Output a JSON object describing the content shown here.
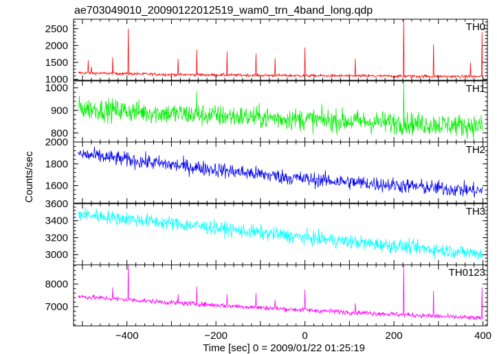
{
  "chart_data": {
    "type": "line",
    "title": "ae703049010_20090122012519_wam0_trn_4band_long.qdp",
    "xlabel": "Time [sec] 0 = 2009/01/22 01:25:19",
    "ylabel": "Counts/sec",
    "xlim": [
      -520,
      410
    ],
    "x_ticks": [
      -400,
      -200,
      0,
      200,
      400
    ],
    "x_tick_labels": [
      "−400",
      "−200",
      "0",
      "200",
      "400"
    ],
    "x_step": 1,
    "panels": [
      {
        "name": "TH0",
        "color": "#ff0000",
        "ylim": [
          970,
          2780
        ],
        "y_ticks": [
          1000,
          1500,
          2000,
          2500
        ],
        "trend": [
          [
            -510,
            1190
          ],
          [
            -300,
            1140
          ],
          [
            0,
            1105
          ],
          [
            400,
            1080
          ]
        ],
        "noise": 22,
        "spikes": [
          {
            "x": -487,
            "y": 1560
          },
          {
            "x": -480,
            "y": 1370
          },
          {
            "x": -432,
            "y": 1650
          },
          {
            "x": -397,
            "y": 2500
          },
          {
            "x": -285,
            "y": 1600
          },
          {
            "x": -243,
            "y": 1880
          },
          {
            "x": -175,
            "y": 1830
          },
          {
            "x": -110,
            "y": 1760
          },
          {
            "x": -67,
            "y": 1620
          },
          {
            "x": 0,
            "y": 1940
          },
          {
            "x": 113,
            "y": 1610
          },
          {
            "x": 222,
            "y": 2780
          },
          {
            "x": 289,
            "y": 2030
          },
          {
            "x": 372,
            "y": 1500
          },
          {
            "x": 398,
            "y": 2390
          }
        ]
      },
      {
        "name": "TH1",
        "color": "#00ee00",
        "ylim": [
          760,
          1030
        ],
        "y_ticks": [
          800,
          900,
          1000
        ],
        "trend": [
          [
            -510,
            910
          ],
          [
            -300,
            885
          ],
          [
            0,
            860
          ],
          [
            400,
            830
          ]
        ],
        "noise": 25,
        "spikes": [
          {
            "x": 222,
            "y": 1030
          },
          {
            "x": -243,
            "y": 985
          }
        ]
      },
      {
        "name": "TH2",
        "color": "#0000ee",
        "ylim": [
          1440,
          2000
        ],
        "y_ticks": [
          1600,
          1800,
          2000
        ],
        "trend": [
          [
            -510,
            1890
          ],
          [
            -300,
            1790
          ],
          [
            0,
            1660
          ],
          [
            400,
            1550
          ]
        ],
        "noise": 35,
        "spikes": []
      },
      {
        "name": "TH3",
        "color": "#00ffff",
        "ylim": [
          2880,
          3600
        ],
        "y_ticks": [
          3000,
          3200,
          3400,
          3600
        ],
        "trend": [
          [
            -510,
            3480
          ],
          [
            -300,
            3370
          ],
          [
            0,
            3200
          ],
          [
            400,
            3010
          ]
        ],
        "noise": 42,
        "spikes": []
      },
      {
        "name": "TH0123",
        "color": "#ff00ff",
        "ylim": [
          6150,
          8850
        ],
        "y_ticks": [
          7000,
          8000
        ],
        "trend": [
          [
            -510,
            7450
          ],
          [
            -300,
            7180
          ],
          [
            0,
            6850
          ],
          [
            400,
            6480
          ]
        ],
        "noise": 55,
        "spikes": [
          {
            "x": -432,
            "y": 7850
          },
          {
            "x": -397,
            "y": 8850
          },
          {
            "x": -285,
            "y": 7550
          },
          {
            "x": -243,
            "y": 7900
          },
          {
            "x": -175,
            "y": 7550
          },
          {
            "x": -110,
            "y": 7600
          },
          {
            "x": -67,
            "y": 7300
          },
          {
            "x": 0,
            "y": 7750
          },
          {
            "x": 113,
            "y": 7150
          },
          {
            "x": 222,
            "y": 8850
          },
          {
            "x": 289,
            "y": 7700
          },
          {
            "x": 398,
            "y": 7850
          }
        ]
      }
    ]
  }
}
